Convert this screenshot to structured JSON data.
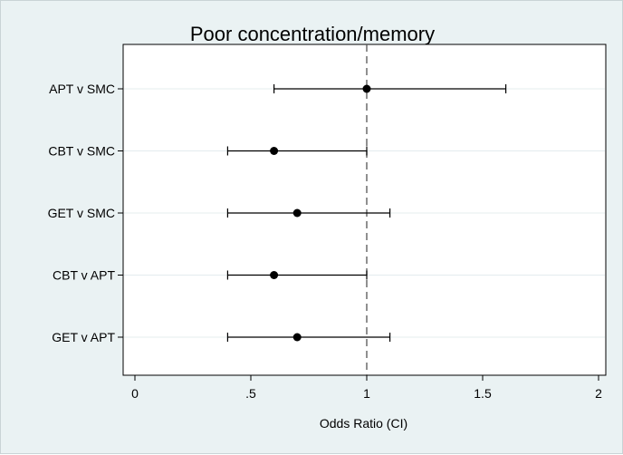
{
  "chart_data": {
    "type": "scatter",
    "title": "Poor concentration/memory",
    "xlabel": "Odds Ratio (CI)",
    "ylabel": "",
    "xlim": [
      0,
      2
    ],
    "xticks": [
      {
        "value": 0,
        "label": "0"
      },
      {
        "value": 0.5,
        "label": ".5"
      },
      {
        "value": 1,
        "label": "1"
      },
      {
        "value": 1.5,
        "label": "1.5"
      },
      {
        "value": 2,
        "label": "2"
      }
    ],
    "reference_line": 1,
    "categories": [
      "APT v SMC",
      "CBT v SMC",
      "GET v SMC",
      "CBT v APT",
      "GET v APT"
    ],
    "estimates": [
      1.0,
      0.6,
      0.7,
      0.6,
      0.7
    ],
    "ci_lower": [
      0.6,
      0.4,
      0.4,
      0.4,
      0.4
    ],
    "ci_upper": [
      1.6,
      1.0,
      1.1,
      1.0,
      1.1
    ],
    "grid": true,
    "colors": {
      "background": "#eaf2f3",
      "plot_area": "#ffffff",
      "grid": "#e4ecee",
      "marks": "#000000",
      "reference_line": "#555555"
    }
  }
}
